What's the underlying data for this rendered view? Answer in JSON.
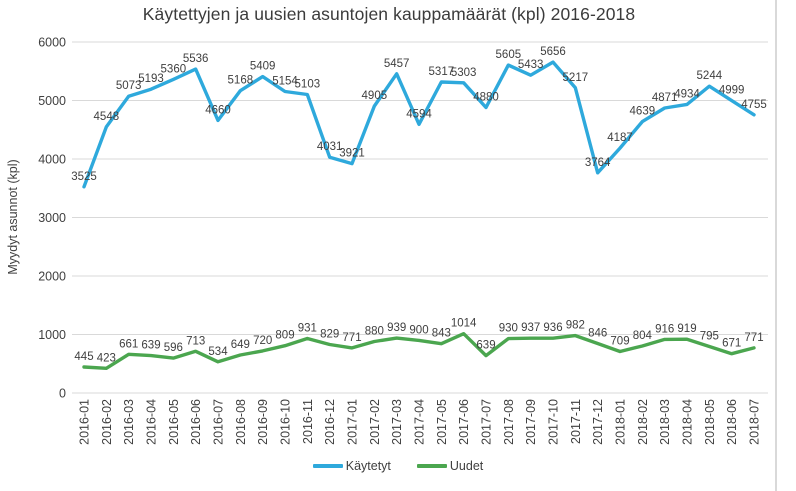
{
  "title": "Käytettyjen ja uusien asuntojen kauppamäärät (kpl) 2016-2018",
  "y_axis_label": "Myydyt asunnot (kpl)",
  "colors": {
    "used_line": "#2ea9dc",
    "new_line": "#4ba64f",
    "gridline": "#d9d9d9",
    "text": "#404040",
    "title_text": "#3b3b3b"
  },
  "legend": {
    "items": [
      "Käytetyt",
      "Uudet"
    ]
  },
  "chart_data": {
    "type": "line",
    "title": "Käytettyjen ja uusien asuntojen kauppamäärät (kpl) 2016-2018",
    "xlabel": "",
    "ylabel": "Myydyt asunnot (kpl)",
    "ylim": [
      0,
      6000
    ],
    "yticks": [
      0,
      1000,
      2000,
      3000,
      4000,
      5000,
      6000
    ],
    "grid": true,
    "legend_position": "bottom",
    "data_labels": true,
    "categories": [
      "2016-01",
      "2016-02",
      "2016-03",
      "2016-04",
      "2016-05",
      "2016-06",
      "2016-07",
      "2016-08",
      "2016-09",
      "2016-10",
      "2016-11",
      "2016-12",
      "2017-01",
      "2017-02",
      "2017-03",
      "2017-04",
      "2017-05",
      "2017-06",
      "2017-07",
      "2017-08",
      "2017-09",
      "2017-10",
      "2017-11",
      "2017-12",
      "2018-01",
      "2018-02",
      "2018-03",
      "2018-04",
      "2018-05",
      "2018-06",
      "2018-07"
    ],
    "series": [
      {
        "name": "Käytetyt",
        "color": "#2ea9dc",
        "values": [
          3525,
          4548,
          5073,
          5193,
          5360,
          5536,
          4660,
          5168,
          5409,
          5154,
          5103,
          4031,
          3921,
          4905,
          5457,
          4594,
          5317,
          5303,
          4880,
          5605,
          5433,
          5656,
          5217,
          3764,
          4187,
          4639,
          4871,
          4934,
          5244,
          4999,
          4755
        ]
      },
      {
        "name": "Uudet",
        "color": "#4ba64f",
        "values": [
          445,
          423,
          661,
          639,
          596,
          713,
          534,
          649,
          720,
          809,
          931,
          829,
          771,
          880,
          939,
          900,
          843,
          1014,
          639,
          930,
          937,
          936,
          982,
          846,
          709,
          804,
          916,
          919,
          795,
          671,
          771
        ]
      }
    ]
  }
}
